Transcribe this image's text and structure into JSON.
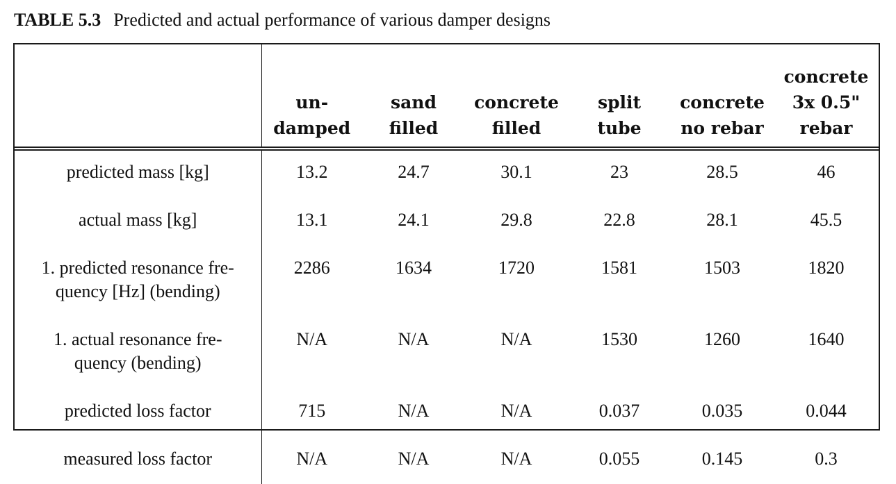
{
  "caption": {
    "label": "TABLE 5.3",
    "text": "Predicted and actual performance of various damper designs"
  },
  "table": {
    "columns": [
      "",
      "un-\ndamped",
      "sand\nfilled",
      "concrete\nfilled",
      "split\ntube",
      "concrete\nno rebar",
      "concrete\n3x 0.5\"\nrebar"
    ],
    "rows": [
      {
        "label": "predicted mass [kg]",
        "values": [
          "13.2",
          "24.7",
          "30.1",
          "23",
          "28.5",
          "46"
        ]
      },
      {
        "label": "actual mass [kg]",
        "values": [
          "13.1",
          "24.1",
          "29.8",
          "22.8",
          "28.1",
          "45.5"
        ]
      },
      {
        "label": "1. predicted resonance fre-\nquency [Hz] (bending)",
        "values": [
          "2286",
          "1634",
          "1720",
          "1581",
          "1503",
          "1820"
        ]
      },
      {
        "label": "1. actual resonance fre-\nquency (bending)",
        "values": [
          "N/A",
          "N/A",
          "N/A",
          "1530",
          "1260",
          "1640"
        ]
      },
      {
        "label": "predicted loss factor",
        "values": [
          "715",
          "N/A",
          "N/A",
          "0.037",
          "0.035",
          "0.044"
        ]
      },
      {
        "label": "measured loss factor",
        "values": [
          "N/A",
          "N/A",
          "N/A",
          "0.055",
          "0.145",
          "0.3"
        ]
      }
    ]
  }
}
